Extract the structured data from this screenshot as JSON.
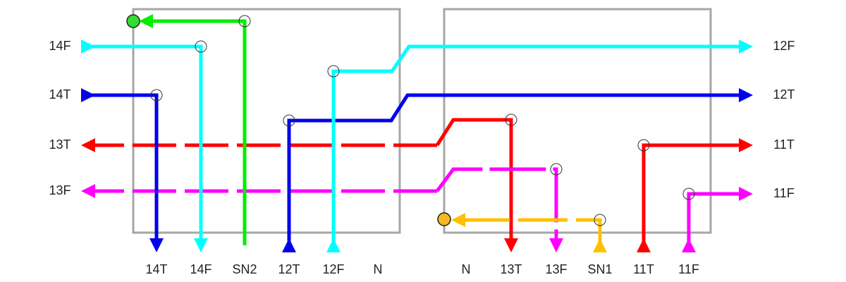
{
  "left_labels": [
    "14F",
    "14T",
    "13T",
    "13F"
  ],
  "right_labels": [
    "12F",
    "12T",
    "11T",
    "11F"
  ],
  "bottom_labels": [
    "14T",
    "14F",
    "SN2",
    "12T",
    "12F",
    "N",
    "N",
    "13T",
    "13F",
    "SN1",
    "11T",
    "11F"
  ]
}
